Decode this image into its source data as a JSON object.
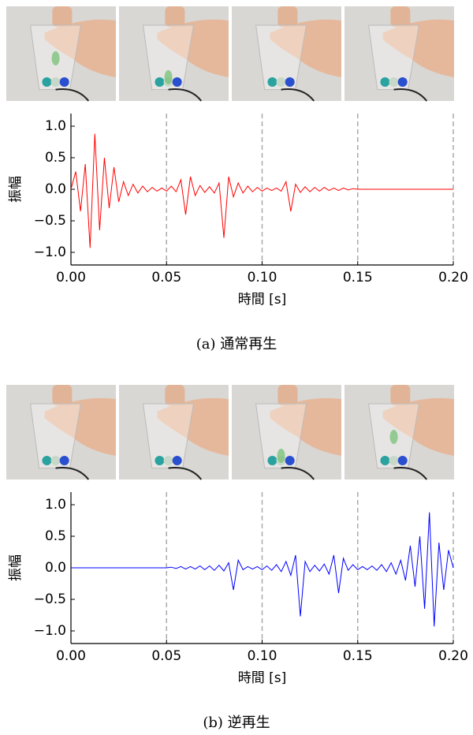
{
  "chart_data": [
    {
      "type": "line",
      "caption": "(a) 通常再生",
      "xlabel": "時間 [s]",
      "ylabel": "振幅",
      "color": "#ff0000",
      "vgrid": true,
      "xlim": [
        0,
        0.2
      ],
      "ylim": [
        -1.2,
        1.2
      ],
      "xticks": [
        {
          "value": 0,
          "label": "0.00"
        },
        {
          "value": 0.05,
          "label": "0.05"
        },
        {
          "value": 0.1,
          "label": "0.10"
        },
        {
          "value": 0.15,
          "label": "0.15"
        },
        {
          "value": 0.2,
          "label": "0.20"
        }
      ],
      "yticks": [
        {
          "value": -1,
          "label": "−1.0"
        },
        {
          "value": -0.5,
          "label": "−0.5"
        },
        {
          "value": 0,
          "label": "0.0"
        },
        0.5,
        {
          "value": 1,
          "label": "1.0"
        }
      ],
      "x": [
        0,
        0.0025,
        0.005,
        0.0075,
        0.01,
        0.0125,
        0.015,
        0.0175,
        0.02,
        0.0225,
        0.025,
        0.0275,
        0.03,
        0.0325,
        0.035,
        0.0375,
        0.04,
        0.0425,
        0.045,
        0.0475,
        0.05,
        0.0525,
        0.055,
        0.0575,
        0.06,
        0.0625,
        0.065,
        0.0675,
        0.07,
        0.0725,
        0.075,
        0.0775,
        0.08,
        0.0825,
        0.085,
        0.0875,
        0.09,
        0.0925,
        0.095,
        0.0975,
        0.1,
        0.1025,
        0.105,
        0.1075,
        0.11,
        0.1125,
        0.115,
        0.1175,
        0.12,
        0.1225,
        0.125,
        0.1275,
        0.13,
        0.1325,
        0.135,
        0.1375,
        0.14,
        0.1425,
        0.145,
        0.1475,
        0.15,
        0.1525,
        0.155,
        0.1575,
        0.16,
        0.1625,
        0.165,
        0.1675,
        0.17,
        0.1725,
        0.175,
        0.1775,
        0.18,
        0.1825,
        0.185,
        0.1875,
        0.19,
        0.1925,
        0.195,
        0.1975,
        0.2
      ],
      "values": [
        0,
        0.28,
        -0.35,
        0.4,
        -0.93,
        0.88,
        -0.65,
        0.5,
        -0.3,
        0.35,
        -0.2,
        0.12,
        -0.1,
        0.08,
        -0.06,
        0.05,
        -0.04,
        0.03,
        -0.03,
        0.02,
        -0.03,
        0.05,
        -0.04,
        0.15,
        -0.4,
        0.2,
        -0.1,
        0.06,
        -0.05,
        0.04,
        -0.06,
        0.1,
        -0.77,
        0.2,
        -0.12,
        0.1,
        -0.06,
        0.05,
        -0.04,
        0.03,
        -0.03,
        0.02,
        -0.02,
        0.02,
        -0.03,
        0.12,
        -0.35,
        0.08,
        -0.05,
        0.04,
        -0.04,
        0.03,
        -0.03,
        0.03,
        -0.02,
        0.02,
        -0.02,
        0.02,
        -0.01,
        0.01,
        0,
        0,
        0,
        0,
        0,
        0,
        0,
        0,
        0,
        0,
        0,
        0,
        0,
        0,
        0,
        0,
        0,
        0,
        0,
        0,
        0
      ]
    },
    {
      "type": "line",
      "caption": "(b) 逆再生",
      "xlabel": "時間 [s]",
      "ylabel": "振幅",
      "color": "#0000ff",
      "vgrid": true,
      "xlim": [
        0,
        0.2
      ],
      "ylim": [
        -1.2,
        1.2
      ],
      "xticks": [
        {
          "value": 0,
          "label": "0.00"
        },
        {
          "value": 0.05,
          "label": "0.05"
        },
        {
          "value": 0.1,
          "label": "0.10"
        },
        {
          "value": 0.15,
          "label": "0.15"
        },
        {
          "value": 0.2,
          "label": "0.20"
        }
      ],
      "yticks": [
        {
          "value": -1,
          "label": "−1.0"
        },
        {
          "value": -0.5,
          "label": "−0.5"
        },
        {
          "value": 0,
          "label": "0.0"
        },
        0.5,
        {
          "value": 1,
          "label": "1.0"
        }
      ],
      "x": [
        0,
        0.0025,
        0.005,
        0.0075,
        0.01,
        0.0125,
        0.015,
        0.0175,
        0.02,
        0.0225,
        0.025,
        0.0275,
        0.03,
        0.0325,
        0.035,
        0.0375,
        0.04,
        0.0425,
        0.045,
        0.0475,
        0.05,
        0.0525,
        0.055,
        0.0575,
        0.06,
        0.0625,
        0.065,
        0.0675,
        0.07,
        0.0725,
        0.075,
        0.0775,
        0.08,
        0.0825,
        0.085,
        0.0875,
        0.09,
        0.0925,
        0.095,
        0.0975,
        0.1,
        0.1025,
        0.105,
        0.1075,
        0.11,
        0.1125,
        0.115,
        0.1175,
        0.12,
        0.1225,
        0.125,
        0.1275,
        0.13,
        0.1325,
        0.135,
        0.1375,
        0.14,
        0.1425,
        0.145,
        0.1475,
        0.15,
        0.1525,
        0.155,
        0.1575,
        0.16,
        0.1625,
        0.165,
        0.1675,
        0.17,
        0.1725,
        0.175,
        0.1775,
        0.18,
        0.1825,
        0.185,
        0.1875,
        0.19,
        0.1925,
        0.195,
        0.1975,
        0.2
      ],
      "values": [
        0,
        0,
        0,
        0,
        0,
        0,
        0,
        0,
        0,
        0,
        0,
        0,
        0,
        0,
        0,
        0,
        0,
        0,
        0,
        0,
        0,
        0.01,
        -0.01,
        0.02,
        -0.02,
        0.02,
        -0.02,
        0.03,
        -0.03,
        0.03,
        -0.04,
        0.04,
        -0.05,
        0.08,
        -0.35,
        0.12,
        -0.03,
        0.02,
        -0.02,
        0.02,
        -0.03,
        0.03,
        -0.04,
        0.05,
        -0.06,
        0.1,
        -0.12,
        0.2,
        -0.77,
        0.1,
        -0.06,
        0.04,
        -0.05,
        0.06,
        -0.1,
        0.2,
        -0.4,
        0.15,
        -0.04,
        0.05,
        -0.03,
        0.02,
        -0.03,
        0.03,
        -0.04,
        0.05,
        -0.06,
        0.08,
        -0.1,
        0.12,
        -0.2,
        0.35,
        -0.3,
        0.5,
        -0.65,
        0.88,
        -0.93,
        0.4,
        -0.35,
        0.28,
        0
      ]
    }
  ]
}
